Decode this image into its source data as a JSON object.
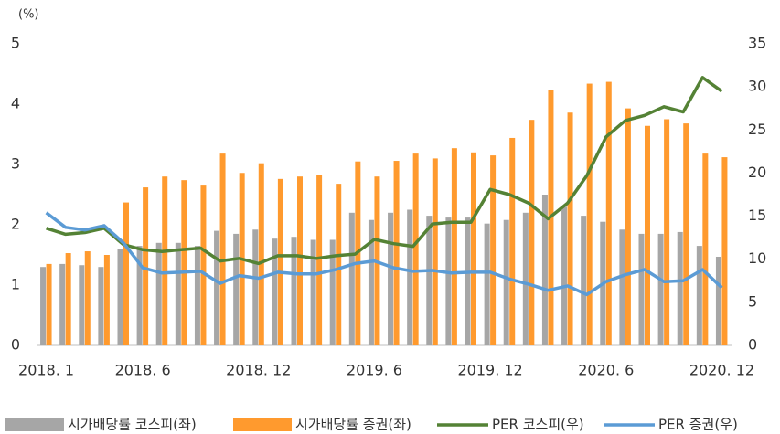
{
  "chart_data": {
    "type": "bar-line",
    "y_unit": "(%)",
    "categories": [
      "2018. 1",
      null,
      null,
      null,
      null,
      "2018. 6",
      null,
      null,
      null,
      null,
      null,
      "2018. 12",
      null,
      null,
      null,
      null,
      null,
      "2019. 6",
      null,
      null,
      null,
      null,
      null,
      "2019. 12",
      null,
      null,
      null,
      null,
      null,
      "2020. 6",
      null,
      null,
      null,
      null,
      null,
      "2020. 12"
    ],
    "series": [
      {
        "name": "시가배당률 코스피(좌)",
        "kind": "bar",
        "color": "#a6a6a6",
        "values": [
          1.3,
          1.35,
          1.33,
          1.3,
          1.6,
          1.65,
          1.7,
          1.7,
          1.65,
          1.9,
          1.85,
          1.92,
          1.77,
          1.8,
          1.75,
          1.75,
          2.2,
          2.08,
          2.2,
          2.25,
          2.15,
          2.12,
          2.12,
          2.02,
          2.08,
          2.2,
          2.5,
          2.3,
          2.15,
          2.05,
          1.92,
          1.85,
          1.85,
          1.88,
          1.65,
          1.47
        ]
      },
      {
        "name": "시가배당률 증권(좌)",
        "kind": "bar",
        "color": "#ff9a2e",
        "values": [
          1.35,
          1.53,
          1.56,
          1.5,
          2.37,
          2.62,
          2.8,
          2.74,
          2.65,
          3.18,
          2.86,
          3.02,
          2.76,
          2.8,
          2.82,
          2.68,
          3.05,
          2.8,
          3.06,
          3.18,
          3.1,
          3.27,
          3.2,
          3.15,
          3.44,
          3.74,
          4.24,
          3.86,
          4.34,
          4.37,
          3.93,
          3.64,
          3.75,
          3.68,
          3.18,
          3.12
        ]
      },
      {
        "name": "PER 코스피(우)",
        "kind": "line",
        "axis": "y2",
        "color": "#548235",
        "values": [
          13.6,
          12.9,
          13.1,
          13.6,
          11.7,
          11.1,
          10.9,
          11.1,
          11.3,
          9.8,
          10.1,
          9.5,
          10.4,
          10.4,
          10.1,
          10.4,
          10.6,
          12.3,
          11.8,
          11.5,
          14.1,
          14.3,
          14.3,
          18.1,
          17.5,
          16.5,
          14.7,
          16.5,
          19.7,
          24.2,
          26.1,
          26.7,
          27.7,
          27.1,
          31.1,
          29.5
        ]
      },
      {
        "name": "PER 증권(우)",
        "kind": "line",
        "axis": "y2",
        "color": "#5b9bd5",
        "values": [
          15.4,
          13.7,
          13.4,
          13.9,
          11.9,
          9.0,
          8.4,
          8.5,
          8.6,
          7.2,
          8.1,
          7.8,
          8.5,
          8.3,
          8.3,
          8.8,
          9.5,
          9.8,
          9.0,
          8.6,
          8.7,
          8.4,
          8.5,
          8.5,
          7.7,
          7.1,
          6.4,
          6.9,
          5.9,
          7.4,
          8.2,
          8.8,
          7.4,
          7.5,
          8.8,
          6.7
        ]
      }
    ],
    "ylim": [
      0,
      5
    ],
    "yticks": [
      0,
      1,
      2,
      3,
      4,
      5
    ],
    "y2lim": [
      0,
      35
    ],
    "y2ticks": [
      0,
      5,
      10,
      15,
      20,
      25,
      30,
      35
    ],
    "grid": false
  }
}
